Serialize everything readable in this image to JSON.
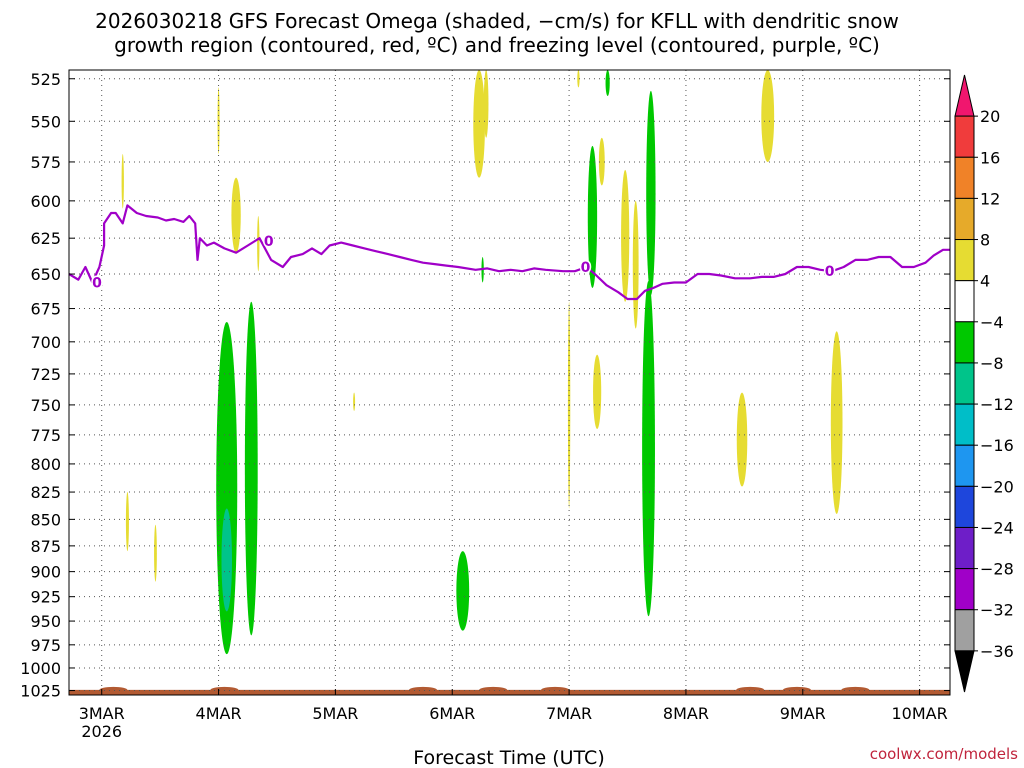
{
  "title": {
    "line1": "2026030218 GFS Forecast Omega (shaded, −cm/s) for KFLL with dendritic snow",
    "line2": "growth region (contoured, red, ºC) and freezing level (contoured, purple, ºC)"
  },
  "credit": "coolwx.com/models",
  "chart_data": {
    "type": "heatmap",
    "title": "2026030218 GFS Forecast Omega (shaded, −cm/s) for KFLL with dendritic snow growth region (contoured, red, ºC) and freezing level (contoured, purple, ºC)",
    "xlabel": "Forecast Time (UTC)",
    "ylabel": "",
    "y_scale": "log-pressure",
    "y_inverted": true,
    "xlim": [
      2.72,
      10.26
    ],
    "ylim": [
      1030,
      520
    ],
    "grid": true,
    "x_ticks": [
      {
        "value": 3,
        "label": "3MAR",
        "sublabel": "2026"
      },
      {
        "value": 4,
        "label": "4MAR",
        "sublabel": ""
      },
      {
        "value": 5,
        "label": "5MAR",
        "sublabel": ""
      },
      {
        "value": 6,
        "label": "6MAR",
        "sublabel": ""
      },
      {
        "value": 7,
        "label": "7MAR",
        "sublabel": ""
      },
      {
        "value": 8,
        "label": "8MAR",
        "sublabel": ""
      },
      {
        "value": 9,
        "label": "9MAR",
        "sublabel": ""
      },
      {
        "value": 10,
        "label": "10MAR",
        "sublabel": ""
      }
    ],
    "y_ticks": [
      525,
      550,
      575,
      600,
      625,
      650,
      675,
      700,
      725,
      750,
      775,
      800,
      825,
      850,
      875,
      900,
      925,
      950,
      975,
      1000,
      1025
    ],
    "colorbar": {
      "labels": [
        "20",
        "16",
        "12",
        "8",
        "4",
        "−4",
        "−8",
        "−12",
        "−16",
        "−20",
        "−24",
        "−28",
        "−32",
        "−36"
      ],
      "colors": [
        "#f0166e",
        "#f03c3c",
        "#f08228",
        "#e6aa2a",
        "#e6dc32",
        "#ffffff",
        "#00c800",
        "#00c48a",
        "#00bec8",
        "#1e96f0",
        "#1e46dc",
        "#6e1ec8",
        "#a000c8",
        "#a0a0a0",
        "#000000"
      ]
    },
    "omega_regions": [
      {
        "color": "#00c800",
        "x": 4.07,
        "half_width": 0.09,
        "p_top": 685,
        "p_bottom": 985
      },
      {
        "color": "#00c48a",
        "x": 4.07,
        "half_width": 0.045,
        "p_top": 840,
        "p_bottom": 940
      },
      {
        "color": "#00c800",
        "x": 4.28,
        "half_width": 0.055,
        "p_top": 670,
        "p_bottom": 965
      },
      {
        "color": "#00c800",
        "x": 6.09,
        "half_width": 0.055,
        "p_top": 880,
        "p_bottom": 960
      },
      {
        "color": "#00c800",
        "x": 7.2,
        "half_width": 0.04,
        "p_top": 565,
        "p_bottom": 660
      },
      {
        "color": "#00c800",
        "x": 7.33,
        "half_width": 0.018,
        "p_top": 520,
        "p_bottom": 535
      },
      {
        "color": "#00c800",
        "x": 7.7,
        "half_width": 0.04,
        "p_top": 532,
        "p_bottom": 665
      },
      {
        "color": "#00c800",
        "x": 7.68,
        "half_width": 0.055,
        "p_top": 655,
        "p_bottom": 945
      },
      {
        "color": "#00c800",
        "x": 6.26,
        "half_width": 0.01,
        "p_top": 638,
        "p_bottom": 656
      },
      {
        "color": "#e6dc32",
        "x": 6.23,
        "half_width": 0.05,
        "p_top": 520,
        "p_bottom": 585
      },
      {
        "color": "#e6dc32",
        "x": 6.29,
        "half_width": 0.02,
        "p_top": 520,
        "p_bottom": 560
      },
      {
        "color": "#e6dc32",
        "x": 4.15,
        "half_width": 0.04,
        "p_top": 585,
        "p_bottom": 635
      },
      {
        "color": "#e6dc32",
        "x": 4.34,
        "half_width": 0.01,
        "p_top": 610,
        "p_bottom": 648
      },
      {
        "color": "#e6dc32",
        "x": 4.0,
        "half_width": 0.006,
        "p_top": 530,
        "p_bottom": 570
      },
      {
        "color": "#e6dc32",
        "x": 3.18,
        "half_width": 0.01,
        "p_top": 570,
        "p_bottom": 605
      },
      {
        "color": "#e6dc32",
        "x": 3.22,
        "half_width": 0.013,
        "p_top": 825,
        "p_bottom": 880
      },
      {
        "color": "#e6dc32",
        "x": 3.46,
        "half_width": 0.012,
        "p_top": 855,
        "p_bottom": 910
      },
      {
        "color": "#e6dc32",
        "x": 5.16,
        "half_width": 0.005,
        "p_top": 740,
        "p_bottom": 755
      },
      {
        "color": "#e6dc32",
        "x": 7.0,
        "half_width": 0.01,
        "p_top": 670,
        "p_bottom": 840
      },
      {
        "color": "#e6dc32",
        "x": 7.24,
        "half_width": 0.035,
        "p_top": 710,
        "p_bottom": 770
      },
      {
        "color": "#e6dc32",
        "x": 7.28,
        "half_width": 0.025,
        "p_top": 560,
        "p_bottom": 590
      },
      {
        "color": "#e6dc32",
        "x": 7.48,
        "half_width": 0.035,
        "p_top": 580,
        "p_bottom": 670
      },
      {
        "color": "#e6dc32",
        "x": 7.57,
        "half_width": 0.025,
        "p_top": 600,
        "p_bottom": 690
      },
      {
        "color": "#e6dc32",
        "x": 7.08,
        "half_width": 0.01,
        "p_top": 520,
        "p_bottom": 530
      },
      {
        "color": "#e6dc32",
        "x": 8.48,
        "half_width": 0.045,
        "p_top": 740,
        "p_bottom": 820
      },
      {
        "color": "#e6dc32",
        "x": 8.7,
        "half_width": 0.055,
        "p_top": 520,
        "p_bottom": 575
      },
      {
        "color": "#e6dc32",
        "x": 9.29,
        "half_width": 0.05,
        "p_top": 692,
        "p_bottom": 845
      }
    ],
    "freezing_level": {
      "color": "#a000c8",
      "label": "0",
      "points": [
        [
          2.72,
          650
        ],
        [
          2.8,
          654
        ],
        [
          2.86,
          645
        ],
        [
          2.92,
          656
        ],
        [
          2.98,
          645
        ],
        [
          3.02,
          630
        ],
        [
          3.02,
          615
        ],
        [
          3.08,
          608
        ],
        [
          3.12,
          608
        ],
        [
          3.18,
          615
        ],
        [
          3.22,
          603
        ],
        [
          3.3,
          608
        ],
        [
          3.38,
          610
        ],
        [
          3.48,
          611
        ],
        [
          3.55,
          613
        ],
        [
          3.62,
          612
        ],
        [
          3.7,
          614
        ],
        [
          3.75,
          610
        ],
        [
          3.8,
          615
        ],
        [
          3.82,
          640
        ],
        [
          3.84,
          625
        ],
        [
          3.9,
          630
        ],
        [
          3.96,
          628
        ],
        [
          4.05,
          632
        ],
        [
          4.15,
          635
        ],
        [
          4.25,
          630
        ],
        [
          4.35,
          625
        ],
        [
          4.45,
          640
        ],
        [
          4.55,
          645
        ],
        [
          4.62,
          638
        ],
        [
          4.72,
          636
        ],
        [
          4.8,
          632
        ],
        [
          4.88,
          636
        ],
        [
          4.95,
          630
        ],
        [
          5.05,
          628
        ],
        [
          5.15,
          630
        ],
        [
          5.25,
          632
        ],
        [
          5.35,
          634
        ],
        [
          5.45,
          636
        ],
        [
          5.55,
          638
        ],
        [
          5.65,
          640
        ],
        [
          5.75,
          642
        ],
        [
          5.85,
          643
        ],
        [
          5.95,
          644
        ],
        [
          6.05,
          645
        ],
        [
          6.2,
          647
        ],
        [
          6.3,
          646
        ],
        [
          6.4,
          648
        ],
        [
          6.5,
          647
        ],
        [
          6.6,
          648
        ],
        [
          6.7,
          646
        ],
        [
          6.8,
          647
        ],
        [
          6.95,
          648
        ],
        [
          7.05,
          648
        ],
        [
          7.15,
          645
        ],
        [
          7.22,
          650
        ],
        [
          7.32,
          658
        ],
        [
          7.42,
          663
        ],
        [
          7.5,
          668
        ],
        [
          7.58,
          668
        ],
        [
          7.65,
          662
        ],
        [
          7.72,
          660
        ],
        [
          7.8,
          657
        ],
        [
          7.9,
          656
        ],
        [
          8.0,
          656
        ],
        [
          8.1,
          650
        ],
        [
          8.2,
          650
        ],
        [
          8.3,
          651
        ],
        [
          8.42,
          653
        ],
        [
          8.55,
          653
        ],
        [
          8.65,
          652
        ],
        [
          8.75,
          652
        ],
        [
          8.85,
          650
        ],
        [
          8.95,
          645
        ],
        [
          9.05,
          645
        ],
        [
          9.15,
          647
        ],
        [
          9.25,
          648
        ],
        [
          9.35,
          645
        ],
        [
          9.45,
          640
        ],
        [
          9.55,
          640
        ],
        [
          9.65,
          638
        ],
        [
          9.75,
          638
        ],
        [
          9.85,
          645
        ],
        [
          9.95,
          645
        ],
        [
          10.05,
          642
        ],
        [
          10.12,
          637
        ],
        [
          10.2,
          633
        ],
        [
          10.26,
          633
        ]
      ],
      "contour_labels": [
        [
          2.96,
          656
        ],
        [
          4.43,
          627
        ],
        [
          7.14,
          645
        ],
        [
          9.23,
          648
        ]
      ]
    },
    "surface_terrain": {
      "color": "#b25a32",
      "p_min": 1022
    }
  }
}
